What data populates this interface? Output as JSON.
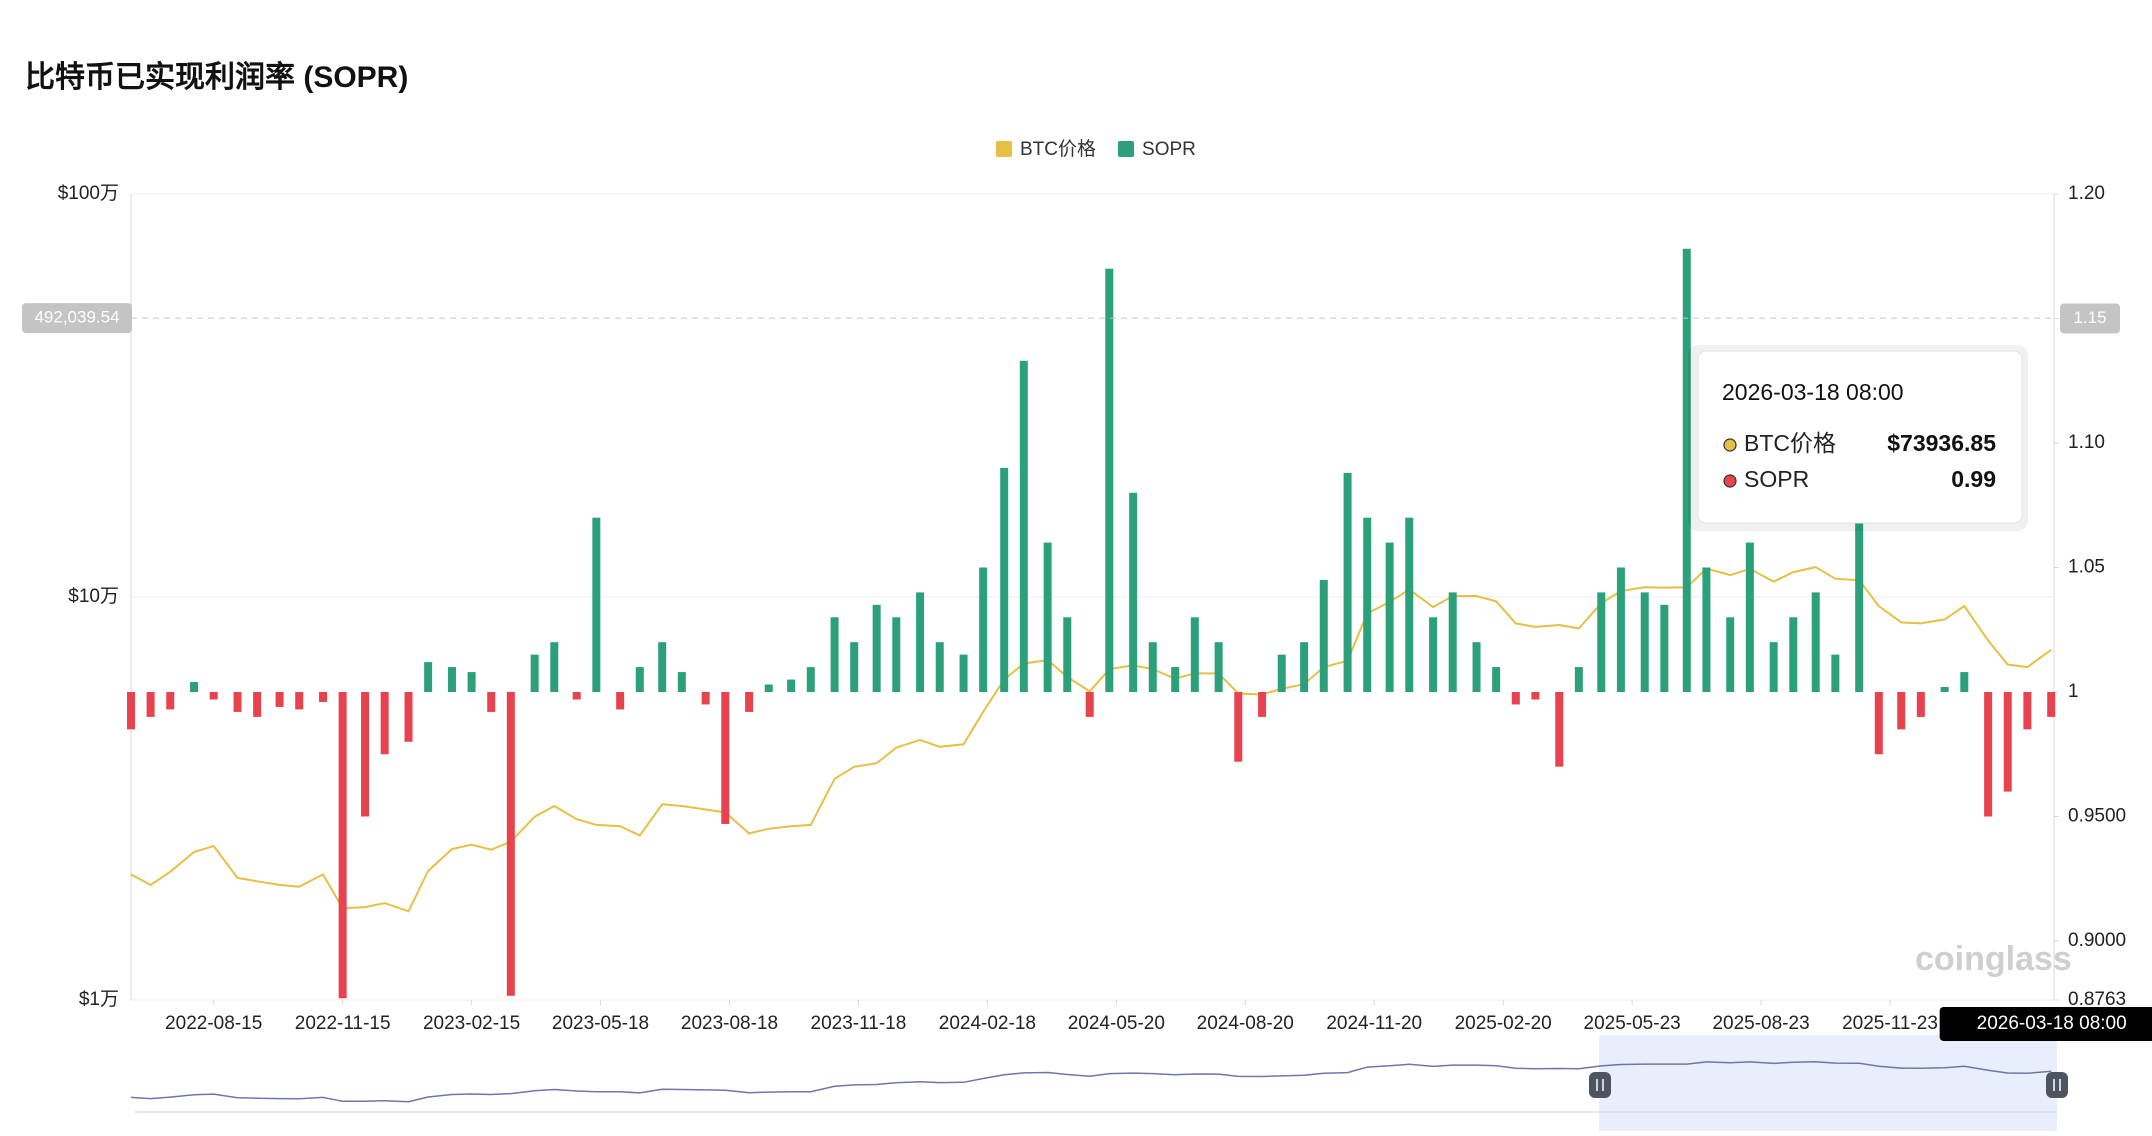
{
  "chart_data": {
    "type": "combo",
    "title": "比特币已实现利润率 (SOPR)",
    "legend": "top",
    "grid": true,
    "y_scale": "log",
    "x": [
      "2022-06-17",
      "2022-07-01",
      "2022-07-15",
      "2022-08-01",
      "2022-08-15",
      "2022-09-01",
      "2022-09-15",
      "2022-10-01",
      "2022-10-15",
      "2022-11-01",
      "2022-11-15",
      "2022-12-01",
      "2022-12-15",
      "2023-01-01",
      "2023-01-15",
      "2023-02-01",
      "2023-02-15",
      "2023-03-01",
      "2023-03-15",
      "2023-04-01",
      "2023-04-15",
      "2023-05-01",
      "2023-05-15",
      "2023-06-01",
      "2023-06-15",
      "2023-07-01",
      "2023-07-15",
      "2023-08-01",
      "2023-08-15",
      "2023-09-01",
      "2023-09-15",
      "2023-10-01",
      "2023-10-15",
      "2023-11-01",
      "2023-11-15",
      "2023-12-01",
      "2023-12-15",
      "2024-01-01",
      "2024-01-15",
      "2024-02-01",
      "2024-02-15",
      "2024-03-01",
      "2024-03-15",
      "2024-04-01",
      "2024-04-15",
      "2024-05-01",
      "2024-05-15",
      "2024-06-01",
      "2024-06-15",
      "2024-07-01",
      "2024-07-15",
      "2024-08-01",
      "2024-08-15",
      "2024-09-01",
      "2024-09-15",
      "2024-10-01",
      "2024-10-15",
      "2024-11-01",
      "2024-11-15",
      "2024-12-01",
      "2024-12-15",
      "2025-01-01",
      "2025-01-15",
      "2025-02-01",
      "2025-02-15",
      "2025-03-01",
      "2025-03-15",
      "2025-04-01",
      "2025-04-15",
      "2025-05-01",
      "2025-05-15",
      "2025-06-01",
      "2025-06-15",
      "2025-07-01",
      "2025-07-15",
      "2025-08-01",
      "2025-08-15",
      "2025-09-01",
      "2025-09-15",
      "2025-10-01",
      "2025-10-15",
      "2025-11-01",
      "2025-11-15",
      "2025-12-01",
      "2025-12-15",
      "2026-01-01",
      "2026-01-15",
      "2026-02-01",
      "2026-02-15",
      "2026-03-01",
      "2026-03-18"
    ],
    "series": [
      {
        "name": "BTC价格",
        "type": "line",
        "color": "#e6bf45",
        "values": [
          20500,
          19300,
          20800,
          23300,
          24100,
          20100,
          19700,
          19300,
          19100,
          20500,
          16900,
          17000,
          17400,
          16600,
          20900,
          23700,
          24300,
          23600,
          24700,
          28500,
          30300,
          28100,
          27200,
          27000,
          25600,
          30600,
          30300,
          29700,
          29200,
          25900,
          26600,
          27000,
          27200,
          35400,
          37900,
          38700,
          42300,
          44200,
          42500,
          43100,
          51900,
          62400,
          68400,
          69700,
          63400,
          58300,
          66200,
          67700,
          66200,
          62700,
          64700,
          64600,
          57600,
          57300,
          59200,
          60800,
          67000,
          69500,
          91000,
          97200,
          104400,
          94400,
          100500,
          100600,
          97500,
          86000,
          84300,
          85200,
          83600,
          96500,
          103500,
          105700,
          105500,
          105700,
          117700,
          113300,
          117400,
          109200,
          115300,
          118600,
          111000,
          110000,
          95000,
          86500,
          86000,
          88000,
          95000,
          78000,
          68000,
          67000,
          73936.85
        ]
      },
      {
        "name": "SOPR",
        "type": "bar",
        "axis": "y2",
        "base": 1,
        "color": "#2ba07a",
        "negative_color": "#e8424f",
        "values": [
          0.985,
          0.99,
          0.993,
          1.004,
          0.997,
          0.992,
          0.99,
          0.994,
          0.993,
          0.996,
          0.877,
          0.95,
          0.975,
          0.98,
          1.012,
          1.01,
          1.008,
          0.992,
          0.878,
          1.015,
          1.02,
          0.997,
          1.07,
          0.993,
          1.01,
          1.02,
          1.008,
          0.995,
          0.947,
          0.992,
          1.003,
          1.005,
          1.01,
          1.03,
          1.02,
          1.035,
          1.03,
          1.04,
          1.02,
          1.015,
          1.05,
          1.09,
          1.133,
          1.06,
          1.03,
          0.99,
          1.17,
          1.08,
          1.02,
          1.01,
          1.03,
          1.02,
          0.972,
          0.99,
          1.015,
          1.02,
          1.045,
          1.088,
          1.07,
          1.06,
          1.07,
          1.03,
          1.04,
          1.02,
          1.01,
          0.995,
          0.997,
          0.97,
          1.01,
          1.04,
          1.05,
          1.04,
          1.035,
          1.178,
          1.05,
          1.03,
          1.06,
          1.02,
          1.03,
          1.04,
          1.015,
          1.07,
          0.975,
          0.985,
          0.99,
          1.002,
          1.008,
          0.95,
          0.96,
          0.985,
          0.99
        ]
      }
    ],
    "xlim": [
      "2022-06-17",
      "2026-03-20"
    ],
    "xticks": [
      "2022-08-15",
      "2022-11-15",
      "2023-02-15",
      "2023-05-18",
      "2023-08-18",
      "2023-11-18",
      "2024-02-18",
      "2024-05-20",
      "2024-08-20",
      "2024-11-20",
      "2025-02-20",
      "2025-05-23",
      "2025-08-23",
      "2025-11-23"
    ],
    "ylim": [
      10000,
      1000000
    ],
    "yticks": [
      {
        "value": 10000,
        "label": "$1万"
      },
      {
        "value": 100000,
        "label": "$10万"
      },
      {
        "value": 1000000,
        "label": "$100万"
      }
    ],
    "y2lim": [
      0.8763,
      1.2
    ],
    "y2ticks": [
      0.8763,
      {
        "value": 0.9,
        "label": "0.9000"
      },
      {
        "value": 0.95,
        "label": "0.9500"
      },
      1,
      1.05,
      {
        "value": 1.1,
        "label": "1.10"
      },
      1.15,
      {
        "value": 1.2,
        "label": "1.20"
      }
    ],
    "crosshair": {
      "x": "2026-03-18 08:00",
      "y": {
        "value": 492039.54,
        "label": "492,039.54"
      },
      "y2": {
        "value": 1.15,
        "label": "1.15"
      }
    },
    "tooltip": {
      "title": "2026-03-18 08:00",
      "rows": [
        {
          "name": "BTC价格",
          "value": 73936.85,
          "label": "$73936.85",
          "color": "#e6bf45"
        },
        {
          "name": "SOPR",
          "value": 0.99,
          "label": "0.99",
          "color": "#e8424f"
        }
      ]
    },
    "watermark": "coinglass"
  }
}
